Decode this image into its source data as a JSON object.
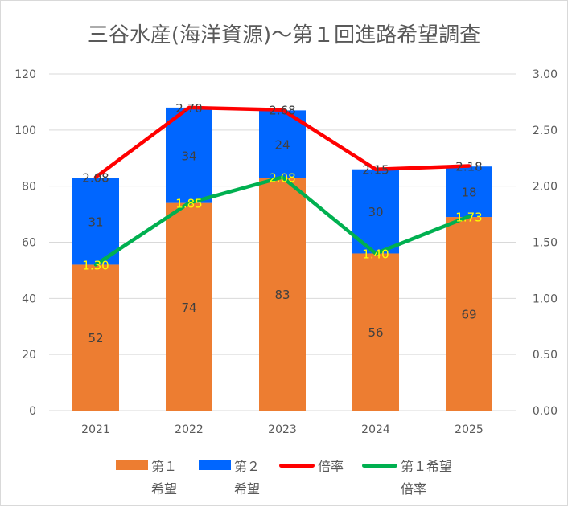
{
  "chart_data": {
    "type": "bar",
    "title": "三谷水産(海洋資源)～第１回進路希望調査",
    "categories": [
      "2021",
      "2022",
      "2023",
      "2024",
      "2025"
    ],
    "series": [
      {
        "name": "第１希望",
        "kind": "bar",
        "axis": "left",
        "color": "#ED7D31",
        "values": [
          52,
          74,
          83,
          56,
          69
        ],
        "labels": [
          "52",
          "74",
          "83",
          "56",
          "69"
        ]
      },
      {
        "name": "第２希望",
        "kind": "bar",
        "axis": "left",
        "color": "#0066FF",
        "values": [
          31,
          34,
          24,
          30,
          18
        ],
        "labels": [
          "31",
          "34",
          "24",
          "30",
          "18"
        ]
      },
      {
        "name": "倍率",
        "kind": "line",
        "axis": "right",
        "color": "#FF0000",
        "values": [
          2.08,
          2.7,
          2.68,
          2.15,
          2.18
        ],
        "labels": [
          "2.08",
          "2.70",
          "2.68",
          "2.15",
          "2.18"
        ]
      },
      {
        "name": "第１希望倍率",
        "kind": "line",
        "axis": "right",
        "color": "#00B050",
        "values": [
          1.3,
          1.85,
          2.08,
          1.4,
          1.73
        ],
        "labels": [
          "1.30",
          "1.85",
          "2.08",
          "1.40",
          "1.73"
        ]
      }
    ],
    "ylim": [
      0,
      120
    ],
    "yticks": [
      "0",
      "20",
      "40",
      "60",
      "80",
      "100",
      "120"
    ],
    "y2lim": [
      0,
      3
    ],
    "y2ticks": [
      "0.00",
      "0.50",
      "1.00",
      "1.50",
      "2.00",
      "2.50",
      "3.00"
    ],
    "grid": true,
    "legend": {
      "position": "bottom",
      "items": [
        [
          "第１",
          "希望"
        ],
        [
          "第２",
          "希望"
        ],
        [
          "倍率"
        ],
        [
          "第１希望",
          "倍率"
        ]
      ]
    }
  }
}
